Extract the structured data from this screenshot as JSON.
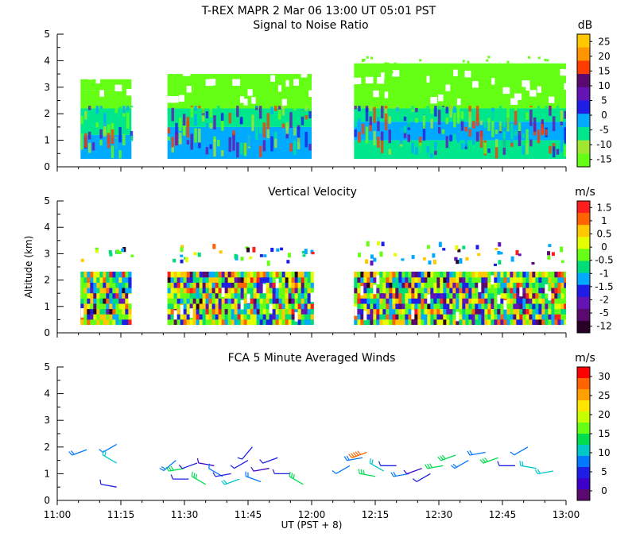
{
  "header": {
    "title": "T-REX   MAPR   2 Mar 06   13:00 UT   05:01   PST"
  },
  "x_axis": {
    "label": "UT  (PST + 8)",
    "tick_labels": [
      "11:00",
      "11:15",
      "11:30",
      "11:45",
      "12:00",
      "12:15",
      "12:30",
      "12:45",
      "13:00"
    ],
    "tick_values_min": [
      0,
      15,
      30,
      45,
      60,
      75,
      90,
      105,
      120
    ],
    "range_min": [
      0,
      120
    ]
  },
  "y_axis": {
    "label": "Altitude (km)",
    "tick_labels": [
      "0",
      "1",
      "2",
      "3",
      "4",
      "5"
    ],
    "range_km": [
      0,
      5
    ]
  },
  "chart_data": [
    {
      "type": "heatmap",
      "title": "Signal to Noise Ratio",
      "units": "dB",
      "xlabel": "UT  (PST + 8)",
      "ylabel": "",
      "xlim": [
        0,
        120
      ],
      "ylim": [
        0,
        5
      ],
      "colorbar": {
        "labels": [
          "25",
          "20",
          "15",
          "10",
          "5",
          "0",
          "-5",
          "-10",
          "-15"
        ],
        "colors": [
          "#ffc800",
          "#ff9600",
          "#ff3c00",
          "#5a0a6e",
          "#6414b4",
          "#1e1ee6",
          "#00aaff",
          "#00e68c",
          "#a0e632",
          "#64ff14"
        ]
      },
      "segments": [
        {
          "x_start": 5.5,
          "x_end": 17.5,
          "layers": [
            [
              0.3,
              1.2,
              "#00aaff"
            ],
            [
              1.2,
              2.2,
              "#00e68c"
            ],
            [
              2.2,
              2.9,
              "#64ff14"
            ],
            [
              2.9,
              3.3,
              "#64ff14"
            ]
          ]
        },
        {
          "x_start": 26,
          "x_end": 60,
          "layers": [
            [
              0.3,
              1.5,
              "#00aaff"
            ],
            [
              1.5,
              2.2,
              "#00e68c"
            ],
            [
              2.2,
              3.5,
              "#64ff14"
            ]
          ]
        },
        {
          "x_start": 70,
          "x_end": 120,
          "layers": [
            [
              0.3,
              1.0,
              "#00e68c"
            ],
            [
              1.0,
              1.7,
              "#00aaff"
            ],
            [
              1.7,
              2.2,
              "#00e68c"
            ],
            [
              2.2,
              3.9,
              "#64ff14"
            ]
          ]
        }
      ]
    },
    {
      "type": "heatmap",
      "title": "Vertical Velocity",
      "units": "m/s",
      "xlabel": "UT  (PST + 8)",
      "ylabel": "Altitude (km)",
      "xlim": [
        0,
        120
      ],
      "ylim": [
        0,
        5
      ],
      "colorbar": {
        "labels": [
          "1.5",
          "1",
          "0.5",
          "0",
          "-0.5",
          "-1",
          "-1.5",
          "-2",
          "-5",
          "-12"
        ],
        "colors": [
          "#ff1e1e",
          "#ff6400",
          "#ffc800",
          "#e6ff00",
          "#64ff14",
          "#00dc78",
          "#00aaff",
          "#1e1ee6",
          "#6414b4",
          "#5a0a6e",
          "#280028"
        ]
      },
      "segments": [
        {
          "x_start": 5.5,
          "x_end": 17.5,
          "layers": [
            [
              0.3,
              2.1,
              "mixed"
            ],
            [
              2.8,
              3.3,
              "sparse"
            ]
          ]
        },
        {
          "x_start": 26,
          "x_end": 60,
          "layers": [
            [
              0.3,
              2.1,
              "mixed"
            ],
            [
              2.7,
              3.4,
              "sparse"
            ]
          ]
        },
        {
          "x_start": 70,
          "x_end": 120,
          "layers": [
            [
              0.3,
              2.1,
              "mixed"
            ],
            [
              2.6,
              3.5,
              "sparse"
            ]
          ]
        }
      ]
    },
    {
      "type": "wind_barbs",
      "title": "FCA 5 Minute Averaged Winds",
      "units": "m/s",
      "xlabel": "UT  (PST + 8)",
      "ylabel": "",
      "xlim": [
        0,
        120
      ],
      "ylim": [
        0,
        5
      ],
      "colorbar": {
        "labels": [
          "30",
          "25",
          "20",
          "15",
          "10",
          "5",
          "0"
        ],
        "colors": [
          "#ff0000",
          "#ff6400",
          "#ffa000",
          "#ffe600",
          "#c8ff00",
          "#64ff14",
          "#00dc50",
          "#00c8c8",
          "#0078ff",
          "#1e1ee6",
          "#3c00c8",
          "#5a0a6e"
        ]
      },
      "barbs": [
        {
          "t": 7,
          "alt": 1.9,
          "speed": 8,
          "dir": 250
        },
        {
          "t": 14,
          "alt": 2.1,
          "speed": 7,
          "dir": 240
        },
        {
          "t": 14,
          "alt": 1.4,
          "speed": 12,
          "dir": 300
        },
        {
          "t": 14,
          "alt": 0.5,
          "speed": 5,
          "dir": 280
        },
        {
          "t": 28,
          "alt": 1.5,
          "speed": 8,
          "dir": 230
        },
        {
          "t": 30,
          "alt": 1.2,
          "speed": 13,
          "dir": 260
        },
        {
          "t": 31,
          "alt": 0.8,
          "speed": 6,
          "dir": 270
        },
        {
          "t": 33,
          "alt": 1.4,
          "speed": 5,
          "dir": 250
        },
        {
          "t": 35,
          "alt": 0.6,
          "speed": 14,
          "dir": 300
        },
        {
          "t": 37,
          "alt": 1.3,
          "speed": 4,
          "dir": 280
        },
        {
          "t": 39,
          "alt": 0.9,
          "speed": 7,
          "dir": 300
        },
        {
          "t": 41,
          "alt": 1.0,
          "speed": 5,
          "dir": 260
        },
        {
          "t": 43,
          "alt": 0.8,
          "speed": 10,
          "dir": 250
        },
        {
          "t": 45,
          "alt": 1.5,
          "speed": 6,
          "dir": 240
        },
        {
          "t": 46,
          "alt": 2.0,
          "speed": 5,
          "dir": 220
        },
        {
          "t": 48,
          "alt": 0.7,
          "speed": 8,
          "dir": 290
        },
        {
          "t": 50,
          "alt": 1.2,
          "speed": 4,
          "dir": 260
        },
        {
          "t": 52,
          "alt": 1.6,
          "speed": 5,
          "dir": 250
        },
        {
          "t": 55,
          "alt": 1.0,
          "speed": 6,
          "dir": 270
        },
        {
          "t": 58,
          "alt": 0.6,
          "speed": 14,
          "dir": 300
        },
        {
          "t": 69,
          "alt": 1.3,
          "speed": 7,
          "dir": 240
        },
        {
          "t": 72,
          "alt": 1.6,
          "speed": 8,
          "dir": 260
        },
        {
          "t": 73,
          "alt": 1.8,
          "speed": 28,
          "dir": 250
        },
        {
          "t": 75,
          "alt": 0.9,
          "speed": 13,
          "dir": 280
        },
        {
          "t": 77,
          "alt": 1.1,
          "speed": 12,
          "dir": 300
        },
        {
          "t": 80,
          "alt": 1.3,
          "speed": 6,
          "dir": 270
        },
        {
          "t": 83,
          "alt": 1.0,
          "speed": 8,
          "dir": 260
        },
        {
          "t": 86,
          "alt": 1.2,
          "speed": 4,
          "dir": 250
        },
        {
          "t": 88,
          "alt": 1.0,
          "speed": 5,
          "dir": 240
        },
        {
          "t": 91,
          "alt": 1.3,
          "speed": 14,
          "dir": 260
        },
        {
          "t": 94,
          "alt": 1.7,
          "speed": 13,
          "dir": 250
        },
        {
          "t": 97,
          "alt": 1.5,
          "speed": 9,
          "dir": 240
        },
        {
          "t": 101,
          "alt": 1.8,
          "speed": 8,
          "dir": 260
        },
        {
          "t": 104,
          "alt": 1.6,
          "speed": 15,
          "dir": 250
        },
        {
          "t": 108,
          "alt": 1.3,
          "speed": 6,
          "dir": 270
        },
        {
          "t": 111,
          "alt": 2.0,
          "speed": 7,
          "dir": 240
        },
        {
          "t": 113,
          "alt": 1.2,
          "speed": 12,
          "dir": 280
        },
        {
          "t": 117,
          "alt": 1.1,
          "speed": 10,
          "dir": 260
        }
      ]
    }
  ]
}
